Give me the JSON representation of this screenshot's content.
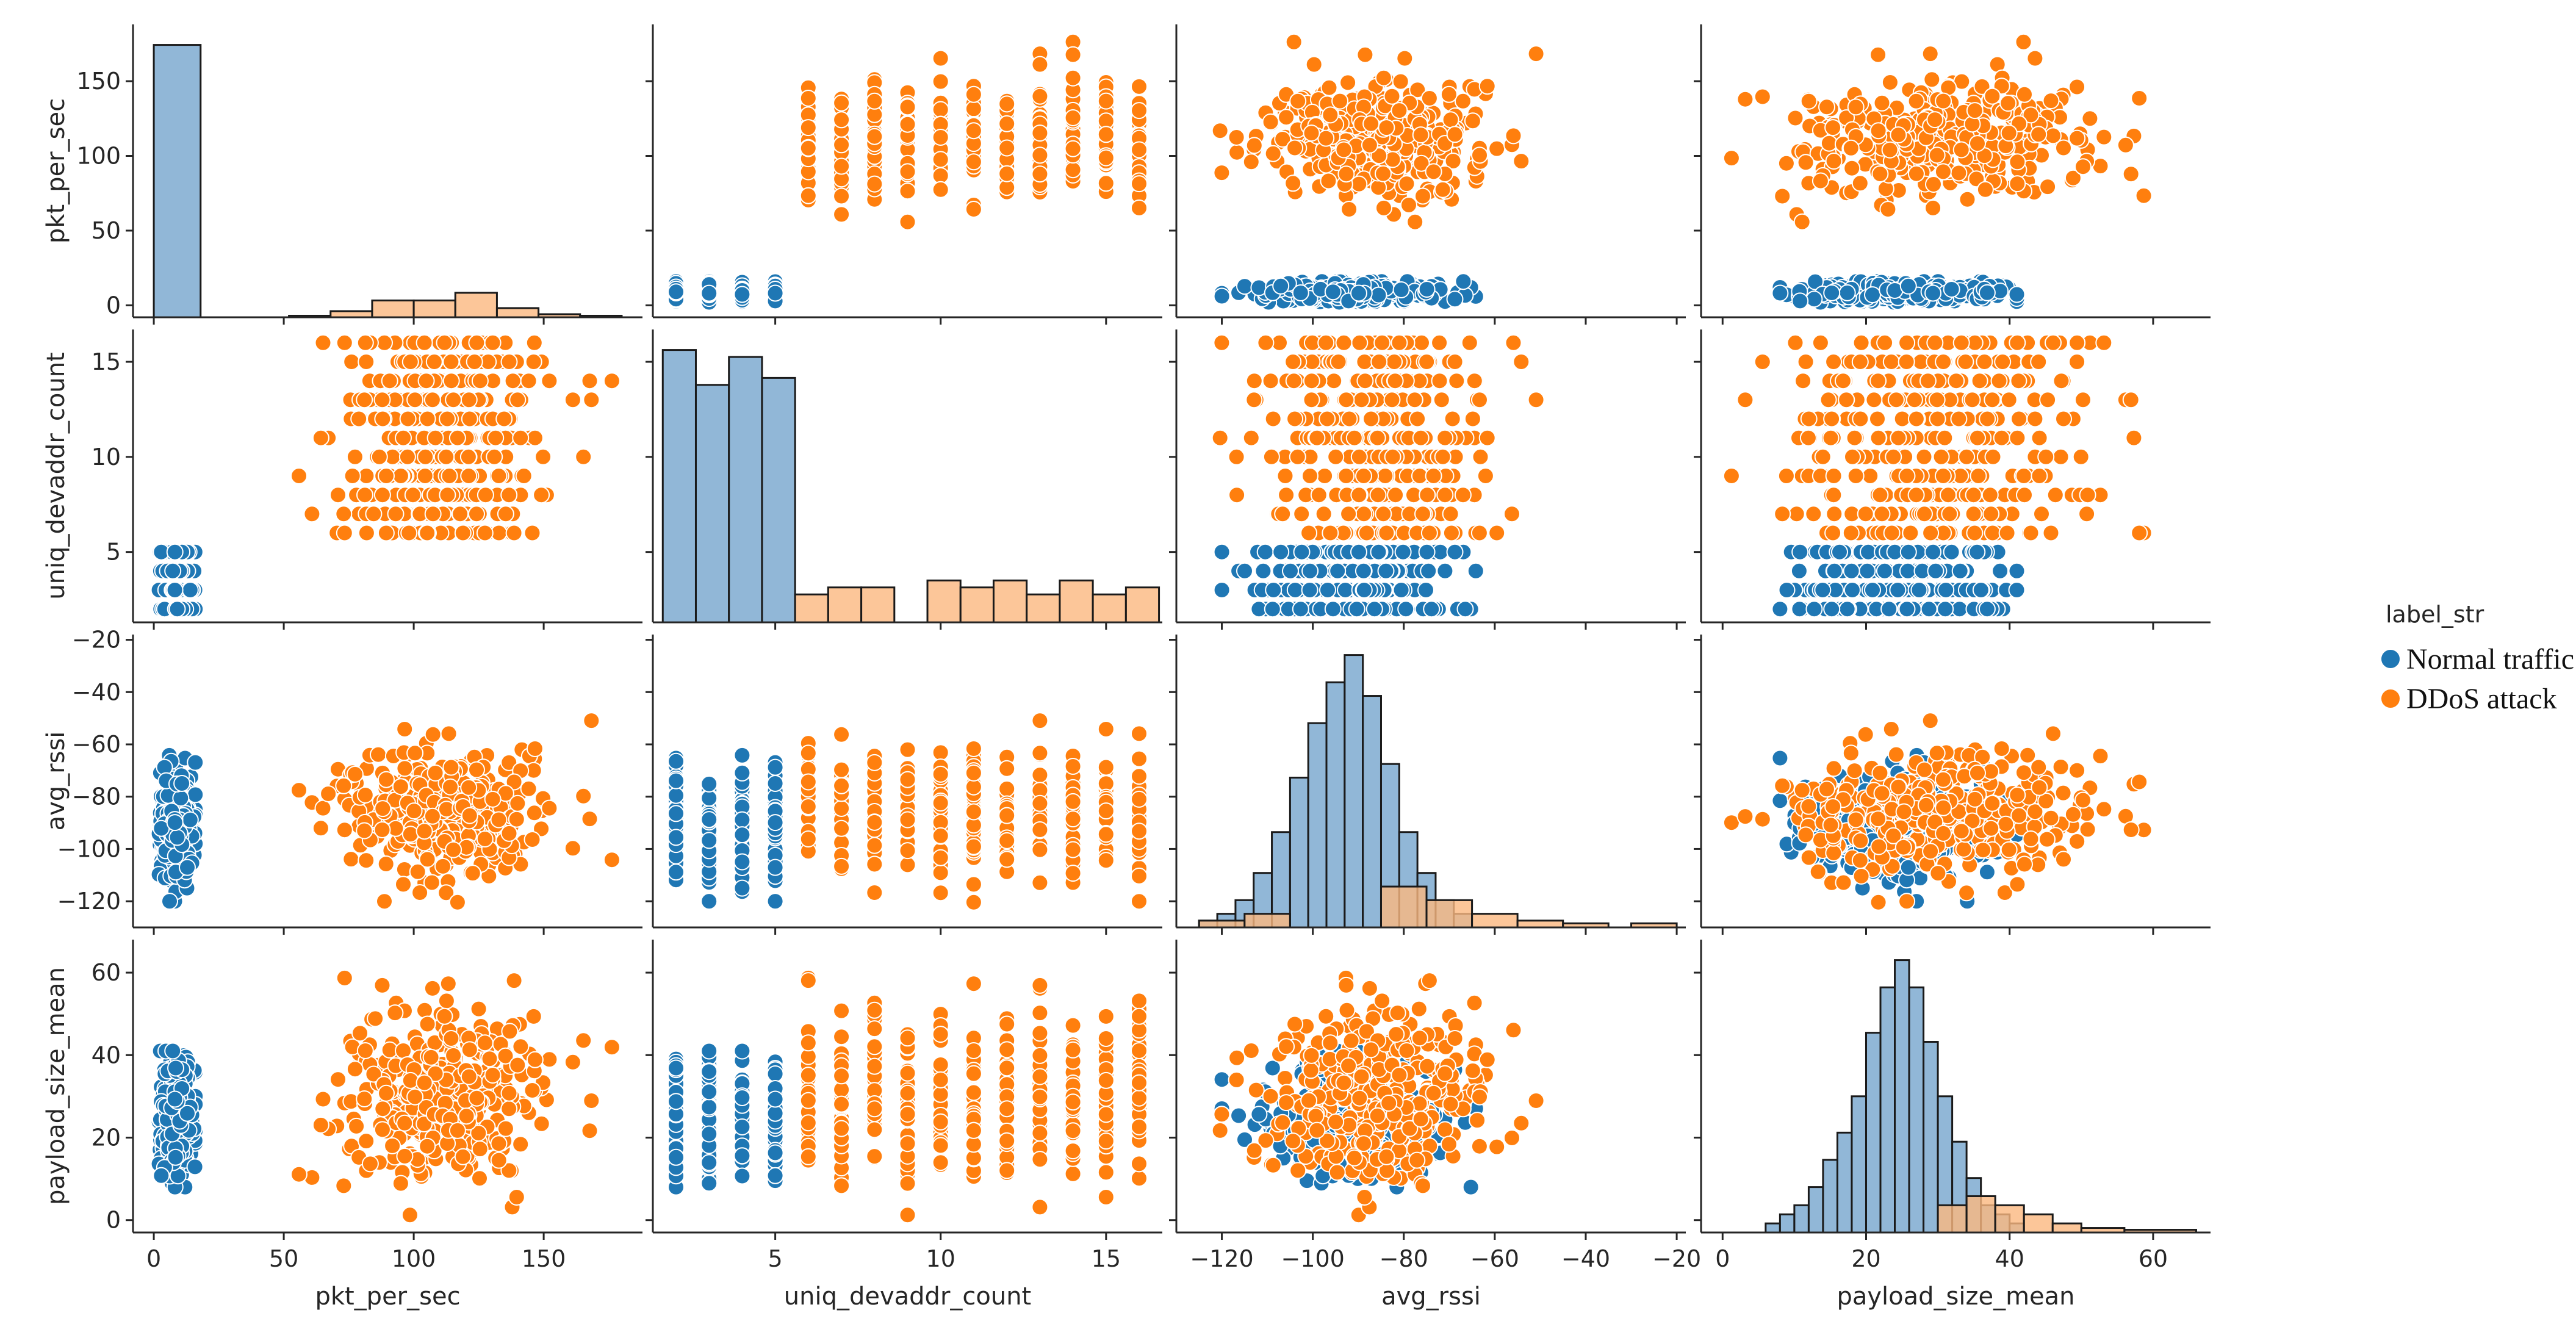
{
  "chart_data": {
    "type": "scatter",
    "subtype": "pairplot",
    "variables": [
      "pkt_per_sec",
      "uniq_devaddr_count",
      "avg_rssi",
      "payload_size_mean"
    ],
    "hue": "label_str",
    "legend": {
      "title": "label_str",
      "placement": "right",
      "entries": [
        {
          "label": "Normal traffic",
          "color": "#1f77b4"
        },
        {
          "label": "DDoS attack",
          "color": "#ff7f0e"
        }
      ]
    },
    "axes": {
      "pkt_per_sec": {
        "range": [
          -8,
          188
        ],
        "ticks": [
          0,
          50,
          100,
          150
        ]
      },
      "uniq_devaddr_count": {
        "range": [
          1.3,
          16.7
        ],
        "ticks": [
          5,
          10,
          15
        ]
      },
      "avg_rssi": {
        "range": [
          -130,
          -18
        ],
        "ticks": [
          -120,
          -100,
          -80,
          -60,
          -40,
          -20
        ]
      },
      "payload_size_mean": {
        "range": [
          -3,
          68
        ],
        "ticks": [
          0,
          20,
          40,
          60
        ]
      }
    },
    "groups": {
      "Normal traffic": {
        "pkt_per_sec": {
          "min": 2,
          "max": 16,
          "mean": 9
        },
        "uniq_devaddr_count": {
          "values": [
            2,
            3,
            4,
            5
          ]
        },
        "avg_rssi": {
          "mean": -92,
          "min": -120,
          "max": -64
        },
        "payload_size_mean": {
          "mean": 25,
          "min": 8,
          "max": 41
        }
      },
      "DDoS attack": {
        "pkt_per_sec": {
          "mean": 112,
          "min": 52,
          "max": 180
        },
        "uniq_devaddr_count": {
          "values": [
            6,
            7,
            8,
            9,
            10,
            11,
            12,
            13,
            14,
            15,
            16
          ]
        },
        "avg_rssi": {
          "mean": -85,
          "min": -123,
          "max": -22
        },
        "payload_size_mean": {
          "mean": 30,
          "min": 0,
          "max": 66
        }
      }
    },
    "histograms": {
      "pkt_per_sec": [
        {
          "series": "Normal traffic",
          "bins": [
            {
              "x0": 0,
              "x1": 18,
              "count": 178
            }
          ]
        },
        {
          "series": "DDoS attack",
          "bins": [
            {
              "x0": 52,
              "x1": 68,
              "count": 1
            },
            {
              "x0": 68,
              "x1": 84,
              "count": 4
            },
            {
              "x0": 84,
              "x1": 100,
              "count": 11
            },
            {
              "x0": 100,
              "x1": 116,
              "count": 11
            },
            {
              "x0": 116,
              "x1": 132,
              "count": 16
            },
            {
              "x0": 132,
              "x1": 148,
              "count": 6
            },
            {
              "x0": 148,
              "x1": 164,
              "count": 2
            },
            {
              "x0": 164,
              "x1": 180,
              "count": 1
            }
          ]
        }
      ],
      "uniq_devaddr_count": [
        {
          "series": "Normal traffic",
          "bins": [
            {
              "x0": 1.6,
              "x1": 2.6,
              "count": 39
            },
            {
              "x0": 2.6,
              "x1": 3.6,
              "count": 34
            },
            {
              "x0": 3.6,
              "x1": 4.6,
              "count": 38
            },
            {
              "x0": 4.6,
              "x1": 5.6,
              "count": 35
            }
          ]
        },
        {
          "series": "DDoS attack",
          "bins": [
            {
              "x0": 5.6,
              "x1": 6.6,
              "count": 4
            },
            {
              "x0": 6.6,
              "x1": 7.6,
              "count": 5
            },
            {
              "x0": 7.6,
              "x1": 8.6,
              "count": 5
            },
            {
              "x0": 8.6,
              "x1": 9.6,
              "count": 0
            },
            {
              "x0": 9.6,
              "x1": 10.6,
              "count": 6
            },
            {
              "x0": 10.6,
              "x1": 11.6,
              "count": 5
            },
            {
              "x0": 11.6,
              "x1": 12.6,
              "count": 6
            },
            {
              "x0": 12.6,
              "x1": 13.6,
              "count": 4
            },
            {
              "x0": 13.6,
              "x1": 14.6,
              "count": 6
            },
            {
              "x0": 14.6,
              "x1": 15.6,
              "count": 4
            },
            {
              "x0": 15.6,
              "x1": 16.6,
              "count": 5
            }
          ]
        }
      ],
      "avg_rssi": [
        {
          "series": "Normal traffic",
          "bins": [
            {
              "x0": -125,
              "x1": -121,
              "count": 0.5
            },
            {
              "x0": -121,
              "x1": -117,
              "count": 1
            },
            {
              "x0": -117,
              "x1": -113,
              "count": 2
            },
            {
              "x0": -113,
              "x1": -109,
              "count": 4
            },
            {
              "x0": -109,
              "x1": -105,
              "count": 7
            },
            {
              "x0": -105,
              "x1": -101,
              "count": 11
            },
            {
              "x0": -101,
              "x1": -97,
              "count": 15
            },
            {
              "x0": -97,
              "x1": -93,
              "count": 18
            },
            {
              "x0": -93,
              "x1": -89,
              "count": 20
            },
            {
              "x0": -89,
              "x1": -85,
              "count": 17
            },
            {
              "x0": -85,
              "x1": -81,
              "count": 12
            },
            {
              "x0": -81,
              "x1": -77,
              "count": 7
            },
            {
              "x0": -77,
              "x1": -73,
              "count": 4
            },
            {
              "x0": -73,
              "x1": -69,
              "count": 2
            },
            {
              "x0": -69,
              "x1": -65,
              "count": 1
            }
          ]
        },
        {
          "series": "DDoS attack",
          "bins": [
            {
              "x0": -125,
              "x1": -115,
              "count": 0.5
            },
            {
              "x0": -115,
              "x1": -105,
              "count": 1
            },
            {
              "x0": -85,
              "x1": -75,
              "count": 3
            },
            {
              "x0": -75,
              "x1": -65,
              "count": 2
            },
            {
              "x0": -65,
              "x1": -55,
              "count": 1
            },
            {
              "x0": -55,
              "x1": -45,
              "count": 0.5
            },
            {
              "x0": -45,
              "x1": -35,
              "count": 0.3
            },
            {
              "x0": -30,
              "x1": -20,
              "count": 0.3
            }
          ]
        }
      ],
      "payload_size_mean": [
        {
          "series": "Normal traffic",
          "bins": [
            {
              "x0": 6,
              "x1": 8,
              "count": 1
            },
            {
              "x0": 8,
              "x1": 10,
              "count": 2
            },
            {
              "x0": 10,
              "x1": 12,
              "count": 3
            },
            {
              "x0": 12,
              "x1": 14,
              "count": 5
            },
            {
              "x0": 14,
              "x1": 16,
              "count": 8
            },
            {
              "x0": 16,
              "x1": 18,
              "count": 11
            },
            {
              "x0": 18,
              "x1": 20,
              "count": 15
            },
            {
              "x0": 20,
              "x1": 22,
              "count": 22
            },
            {
              "x0": 22,
              "x1": 24,
              "count": 27
            },
            {
              "x0": 24,
              "x1": 26,
              "count": 30
            },
            {
              "x0": 26,
              "x1": 28,
              "count": 27
            },
            {
              "x0": 28,
              "x1": 30,
              "count": 21
            },
            {
              "x0": 30,
              "x1": 32,
              "count": 15
            },
            {
              "x0": 32,
              "x1": 34,
              "count": 10
            },
            {
              "x0": 34,
              "x1": 36,
              "count": 6
            },
            {
              "x0": 36,
              "x1": 38,
              "count": 3
            },
            {
              "x0": 38,
              "x1": 40,
              "count": 2
            },
            {
              "x0": 40,
              "x1": 42,
              "count": 1
            }
          ]
        },
        {
          "series": "DDoS attack",
          "bins": [
            {
              "x0": 30,
              "x1": 34,
              "count": 3
            },
            {
              "x0": 34,
              "x1": 38,
              "count": 4
            },
            {
              "x0": 38,
              "x1": 42,
              "count": 3
            },
            {
              "x0": 42,
              "x1": 46,
              "count": 2
            },
            {
              "x0": 46,
              "x1": 50,
              "count": 1
            },
            {
              "x0": 50,
              "x1": 56,
              "count": 0.5
            },
            {
              "x0": 56,
              "x1": 66,
              "count": 0.3
            }
          ]
        }
      ]
    }
  }
}
